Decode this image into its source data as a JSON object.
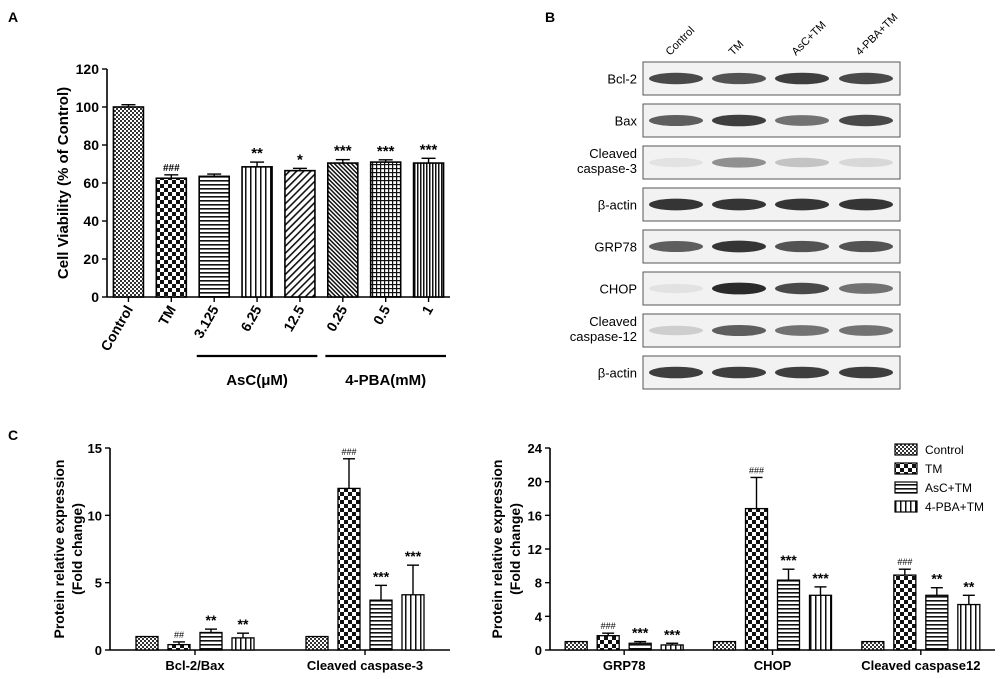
{
  "panel_labels": {
    "a": "A",
    "b": "B",
    "c": "C"
  },
  "chart_data": [
    {
      "panel": "A",
      "type": "bar",
      "ylabel": "Cell Viability (% of Control)",
      "ylim": [
        0,
        120
      ],
      "yticks": [
        0,
        20,
        40,
        60,
        80,
        100,
        120
      ],
      "categories": [
        "Control",
        "TM",
        "3.125",
        "6.25",
        "12.5",
        "0.25",
        "0.5",
        "1"
      ],
      "values": [
        100,
        62.5,
        63.5,
        68.5,
        66.5,
        70.5,
        71,
        70.5
      ],
      "errors": [
        1.2,
        1.8,
        1.2,
        2.5,
        1.2,
        1.8,
        1.2,
        2.5
      ],
      "annotations": [
        "",
        "###",
        "",
        "**",
        "*",
        "***",
        "***",
        "***"
      ],
      "group_labels": [
        "AsC(μM)",
        "4-PBA(mM)"
      ],
      "patterns": [
        "checker-small",
        "checker-big",
        "hlines",
        "vlines",
        "diag",
        "diag-dense",
        "grid",
        "vlines-dense"
      ]
    },
    {
      "panel": "B",
      "type": "table",
      "columns": [
        "Control",
        "TM",
        "AsC+TM",
        "4-PBA+TM"
      ],
      "rows": [
        {
          "label": "Bcl-2",
          "intensity": [
            0.8,
            0.75,
            0.85,
            0.8
          ]
        },
        {
          "label": "Bax",
          "intensity": [
            0.7,
            0.85,
            0.6,
            0.8
          ]
        },
        {
          "label": "Cleaved\ncaspase-3",
          "intensity": [
            0.05,
            0.45,
            0.2,
            0.1
          ]
        },
        {
          "label": "β-actin",
          "intensity": [
            0.9,
            0.9,
            0.9,
            0.9
          ]
        },
        {
          "label": "GRP78",
          "intensity": [
            0.7,
            0.9,
            0.75,
            0.75
          ]
        },
        {
          "label": "CHOP",
          "intensity": [
            0.05,
            0.95,
            0.8,
            0.6
          ]
        },
        {
          "label": "Cleaved\ncaspase-12",
          "intensity": [
            0.15,
            0.7,
            0.6,
            0.6
          ]
        },
        {
          "label": "β-actin",
          "intensity": [
            0.85,
            0.85,
            0.85,
            0.85
          ]
        }
      ]
    },
    {
      "panel": "C-left",
      "type": "bar",
      "ylabel": "Protein relative expression\n(Fold change)",
      "ylim": [
        0,
        15
      ],
      "yticks": [
        0,
        5,
        10,
        15
      ],
      "categories": [
        "Bcl-2/Bax",
        "Cleaved caspase-3"
      ],
      "series": [
        {
          "name": "Control",
          "values": [
            1,
            1
          ],
          "errors": [
            0,
            0
          ],
          "annotations": [
            "",
            ""
          ]
        },
        {
          "name": "TM",
          "values": [
            0.4,
            12
          ],
          "errors": [
            0.2,
            2.2
          ],
          "annotations": [
            "##",
            "###"
          ]
        },
        {
          "name": "AsC+TM",
          "values": [
            1.3,
            3.7
          ],
          "errors": [
            0.25,
            1.1
          ],
          "annotations": [
            "**",
            "***"
          ]
        },
        {
          "name": "4-PBA+TM",
          "values": [
            0.9,
            4.1
          ],
          "errors": [
            0.35,
            2.2
          ],
          "annotations": [
            "**",
            "***"
          ]
        }
      ]
    },
    {
      "panel": "C-right",
      "type": "bar",
      "ylabel": "Protein relative expression\n(Fold change)",
      "ylim": [
        0,
        24
      ],
      "yticks": [
        0,
        4,
        8,
        12,
        16,
        20,
        24
      ],
      "categories": [
        "GRP78",
        "CHOP",
        "Cleaved caspase12"
      ],
      "legend": [
        "Control",
        "TM",
        "AsC+TM",
        "4-PBA+TM"
      ],
      "legend_position": "top-right",
      "series": [
        {
          "name": "Control",
          "values": [
            1,
            1,
            1
          ],
          "errors": [
            0,
            0,
            0
          ],
          "annotations": [
            "",
            "",
            ""
          ]
        },
        {
          "name": "TM",
          "values": [
            1.7,
            16.8,
            8.9
          ],
          "errors": [
            0.3,
            3.7,
            0.7
          ],
          "annotations": [
            "###",
            "###",
            "###"
          ]
        },
        {
          "name": "AsC+TM",
          "values": [
            0.8,
            8.3,
            6.5
          ],
          "errors": [
            0.2,
            1.3,
            0.9
          ],
          "annotations": [
            "***",
            "***",
            "**"
          ]
        },
        {
          "name": "4-PBA+TM",
          "values": [
            0.6,
            6.5,
            5.4
          ],
          "errors": [
            0.2,
            1.0,
            1.1
          ],
          "annotations": [
            "***",
            "***",
            "**"
          ]
        }
      ]
    }
  ]
}
